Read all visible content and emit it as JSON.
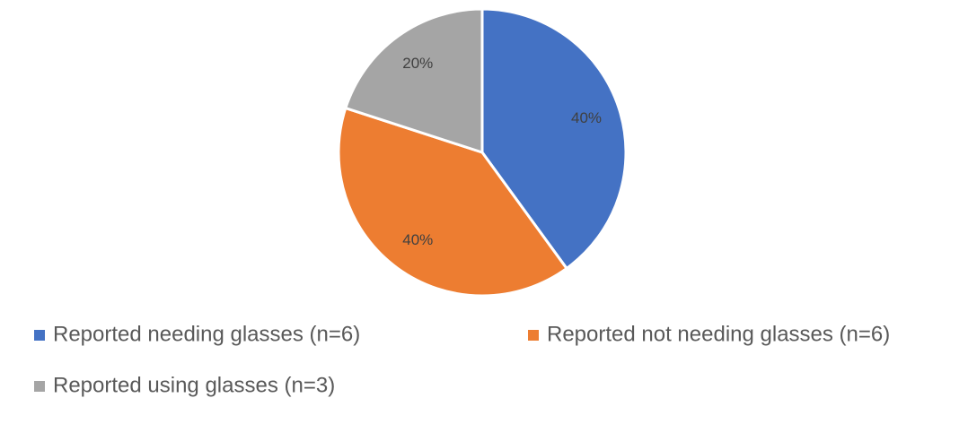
{
  "chart_data": {
    "type": "pie",
    "categories": [
      "Reported needing glasses (n=6)",
      "Reported not needing glasses (n=6)",
      "Reported using glasses (n=3)"
    ],
    "values": [
      40,
      40,
      20
    ],
    "value_labels": [
      "40%",
      "40%",
      "20%"
    ],
    "colors": [
      "#4472c4",
      "#ed7d31",
      "#a5a5a5"
    ],
    "legend": "bottom"
  }
}
